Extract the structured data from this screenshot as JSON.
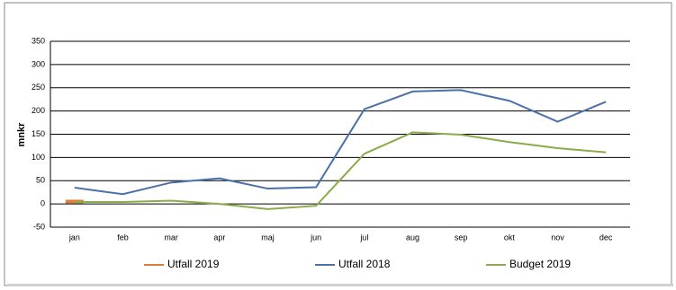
{
  "chart_data": {
    "type": "line",
    "y_label": "mnkr",
    "categories": [
      "jan",
      "feb",
      "mar",
      "apr",
      "maj",
      "jun",
      "jul",
      "aug",
      "sep",
      "okt",
      "nov",
      "dec"
    ],
    "series": [
      {
        "name": "Utfall 2019",
        "color": "#e07b39",
        "values": [
          5,
          null,
          null,
          null,
          null,
          null,
          null,
          null,
          null,
          null,
          null,
          null
        ]
      },
      {
        "name": "Utfall 2018",
        "color": "#4a72a8",
        "values": [
          35,
          21,
          46,
          55,
          33,
          36,
          204,
          242,
          245,
          222,
          177,
          220
        ]
      },
      {
        "name": "Budget 2019",
        "color": "#8aac4a",
        "values": [
          4,
          4,
          7,
          0,
          -11,
          -4,
          108,
          154,
          149,
          133,
          120,
          111
        ]
      }
    ],
    "ylim": [
      -50,
      350
    ],
    "yticks": [
      -50,
      0,
      50,
      100,
      150,
      200,
      250,
      300,
      350
    ],
    "grid": true
  }
}
